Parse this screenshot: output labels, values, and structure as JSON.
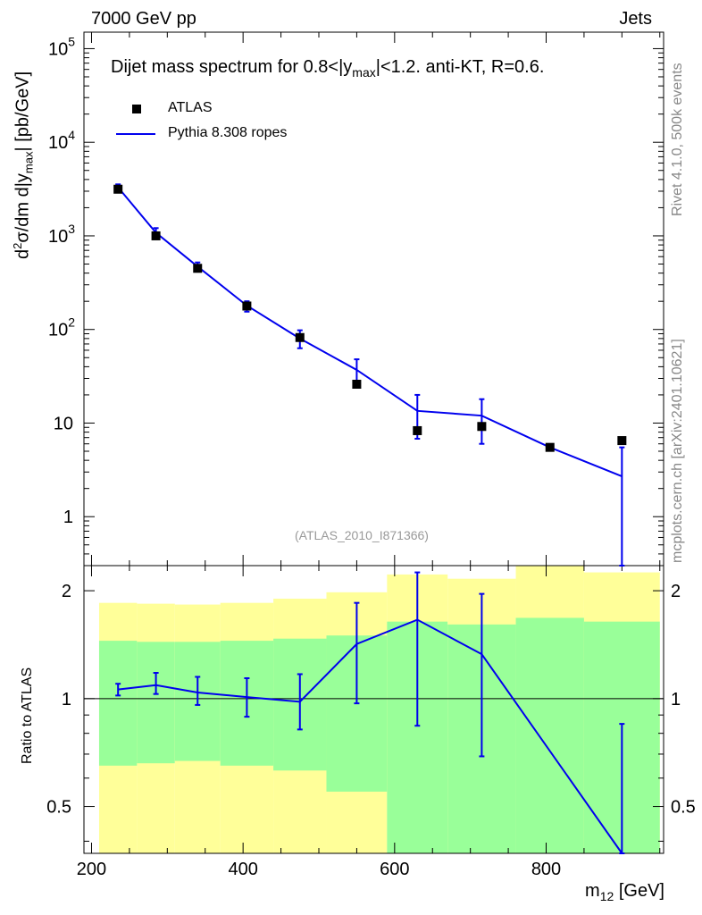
{
  "header": {
    "left": "7000 GeV pp",
    "right": "Jets"
  },
  "side_labels": {
    "rivet": "Rivet 4.1.0,  500k events",
    "mcplots": "mcplots.cern.ch [arXiv:2401.10621]"
  },
  "chart_data": {
    "type": "scatter",
    "title": "Dijet mass spectrum for 0.8<|y_max|<1.2.  anti-KT, R=0.6.",
    "title_parts": {
      "a": "Dijet mass spectrum for 0.8<|y",
      "sub": "max",
      "b": "|<1.2.  anti-KT, R=0.6."
    },
    "analysis_id": "(ATLAS_2010_I871366)",
    "xlabel": {
      "main": "m",
      "sub": "12",
      "unit": " [GeV]"
    },
    "ylabel_top": {
      "p1": "d",
      "sup": "2",
      "p2": "σ/dm d|y",
      "sub": "max",
      "p3": "| [pb/GeV]"
    },
    "ylabel_bottom": "Ratio to ATLAS",
    "xlim": [
      190,
      955
    ],
    "ylim_top": [
      0.3,
      150000
    ],
    "ylim_bottom": [
      0.37,
      2.35
    ],
    "log_y_top": true,
    "log_y_bottom": true,
    "x_ticks": [
      200,
      400,
      600,
      800
    ],
    "y_ticks_top": [
      {
        "v": 1,
        "label": "1"
      },
      {
        "v": 10,
        "label": "10"
      },
      {
        "v": 100,
        "base": "10",
        "exp": "2"
      },
      {
        "v": 1000,
        "base": "10",
        "exp": "3"
      },
      {
        "v": 10000,
        "base": "10",
        "exp": "4"
      },
      {
        "v": 100000,
        "base": "10",
        "exp": "5"
      }
    ],
    "y_ticks_bottom": [
      {
        "v": 0.5,
        "label": "0.5"
      },
      {
        "v": 1,
        "label": "1"
      },
      {
        "v": 2,
        "label": "2"
      }
    ],
    "legend": [
      {
        "name": "ATLAS",
        "marker": "square",
        "color": "#000000"
      },
      {
        "name": "Pythia 8.308 ropes",
        "marker": "line",
        "color": "#0000ee"
      }
    ],
    "bins": [
      {
        "lo": 210,
        "hi": 260,
        "x": 235
      },
      {
        "lo": 260,
        "hi": 310,
        "x": 285
      },
      {
        "lo": 310,
        "hi": 370,
        "x": 340
      },
      {
        "lo": 370,
        "hi": 440,
        "x": 405
      },
      {
        "lo": 440,
        "hi": 510,
        "x": 475
      },
      {
        "lo": 510,
        "hi": 590,
        "x": 550
      },
      {
        "lo": 590,
        "hi": 670,
        "x": 630
      },
      {
        "lo": 670,
        "hi": 760,
        "x": 715
      },
      {
        "lo": 760,
        "hi": 850,
        "x": 805
      },
      {
        "lo": 850,
        "hi": 950,
        "x": 900
      }
    ],
    "series": [
      {
        "name": "ATLAS",
        "values": [
          3150,
          1000,
          450,
          178,
          82,
          26,
          8.3,
          9.2,
          5.5,
          6.5
        ]
      },
      {
        "name": "Pythia 8.308 ropes",
        "values": [
          3300,
          1080,
          470,
          180,
          80,
          37,
          13.5,
          12,
          5.5,
          2.7
        ],
        "err_lo": [
          3050,
          950,
          430,
          155,
          63,
          25,
          6.8,
          6,
          5.3,
          0.3
        ],
        "err_hi": [
          3550,
          1210,
          520,
          200,
          98,
          48,
          20,
          18,
          5.8,
          5.5
        ]
      }
    ],
    "ratio": {
      "values": [
        1.06,
        1.09,
        1.04,
        1.01,
        0.98,
        1.42,
        1.66,
        1.33,
        null,
        0.36
      ],
      "err_lo": [
        1.02,
        1.03,
        0.96,
        0.89,
        0.82,
        0.97,
        0.84,
        0.69,
        null,
        0.37
      ],
      "err_hi": [
        1.1,
        1.18,
        1.15,
        1.14,
        1.17,
        1.85,
        2.25,
        1.96,
        null,
        0.85
      ],
      "band_inner": [
        [
          0.65,
          1.45
        ],
        [
          0.66,
          1.44
        ],
        [
          0.67,
          1.44
        ],
        [
          0.65,
          1.45
        ],
        [
          0.63,
          1.47
        ],
        [
          0.55,
          1.5
        ],
        [
          0.37,
          1.64
        ],
        [
          0.37,
          1.61
        ],
        [
          0.37,
          1.68
        ],
        [
          0.37,
          1.64
        ]
      ],
      "band_outer": [
        [
          0.37,
          1.85
        ],
        [
          0.37,
          1.84
        ],
        [
          0.37,
          1.83
        ],
        [
          0.37,
          1.85
        ],
        [
          0.37,
          1.9
        ],
        [
          0.37,
          1.98
        ],
        [
          0.37,
          2.22
        ],
        [
          0.37,
          2.16
        ],
        [
          0.37,
          2.35
        ],
        [
          0.37,
          2.25
        ]
      ]
    }
  }
}
